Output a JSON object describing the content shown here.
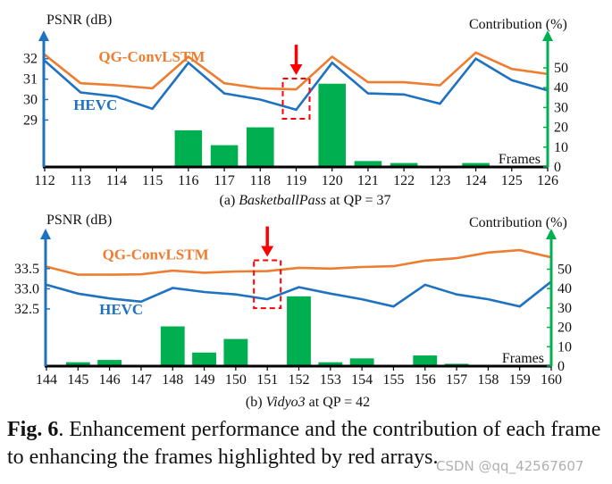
{
  "colors": {
    "qg": "#ed7d31",
    "hevc": "#1f72c0",
    "bars": "#00b050",
    "highlight": "#ff0000",
    "axis_left": "#1f72c0",
    "axis_right": "#00b050"
  },
  "chart_data": [
    {
      "type": "line+bar",
      "id": "a",
      "subtitle_prefix": "(a) ",
      "subtitle_italic": "BasketballPass",
      "subtitle_suffix": " at QP = 37",
      "ylabel_left": "PSNR (dB)",
      "ylabel_right": "Contribution (%)",
      "xlabel": "Frames",
      "x": [
        112,
        113,
        114,
        115,
        116,
        117,
        118,
        119,
        120,
        121,
        122,
        123,
        124,
        125,
        126
      ],
      "x_tick_labels": [
        "112",
        "113",
        "114",
        "115",
        "116",
        "117",
        "118",
        "119",
        "120",
        "121",
        "122",
        "123",
        "124",
        "125",
        "126"
      ],
      "y_left_ticks": [
        29,
        30,
        31,
        32
      ],
      "y_left_tick_labels": [
        "29",
        "30",
        "31",
        "32"
      ],
      "y_left_range": [
        26.7,
        33.3
      ],
      "y_right_ticks": [
        0,
        10,
        20,
        30,
        40,
        50
      ],
      "y_right_tick_labels": [
        "0",
        "10",
        "20",
        "30",
        "40",
        "50"
      ],
      "y_right_range": [
        0,
        68
      ],
      "series": [
        {
          "name": "QG-ConvLSTM",
          "type": "line",
          "color_key": "qg",
          "values": [
            32.2,
            30.8,
            30.7,
            30.55,
            32.1,
            30.8,
            30.55,
            30.5,
            32.1,
            30.85,
            30.85,
            30.7,
            32.3,
            31.5,
            31.25
          ]
        },
        {
          "name": "HEVC",
          "type": "line",
          "color_key": "hevc",
          "values": [
            31.9,
            30.35,
            30.15,
            29.55,
            31.8,
            30.3,
            30.0,
            29.5,
            31.8,
            30.3,
            30.25,
            29.8,
            32.0,
            30.95,
            30.45
          ]
        }
      ],
      "bars": {
        "name": "Contribution",
        "x": [
          113,
          114,
          115,
          116,
          117,
          118,
          120,
          121,
          122,
          123,
          124,
          125
        ],
        "values": [
          0.6,
          0.6,
          0.3,
          18.5,
          11,
          20,
          42,
          3,
          2,
          0.3,
          2,
          0.3
        ]
      },
      "highlight_frame": 119,
      "legend": [
        {
          "text": "QG-ConvLSTM",
          "color_key": "qg",
          "near_frame": 113.7,
          "near_value": 31.85
        },
        {
          "text": "HEVC",
          "color_key": "hevc",
          "near_frame": 113.0,
          "near_value": 29.5
        }
      ]
    },
    {
      "type": "line+bar",
      "id": "b",
      "subtitle_prefix": "(b) ",
      "subtitle_italic": "Vidyo3",
      "subtitle_suffix": " at QP = 42",
      "ylabel_left": "PSNR (dB)",
      "ylabel_right": "Contribution (%)",
      "xlabel": "Frames",
      "x": [
        144,
        145,
        146,
        147,
        148,
        149,
        150,
        151,
        152,
        153,
        154,
        155,
        156,
        157,
        158,
        159,
        160
      ],
      "x_tick_labels": [
        "144",
        "145",
        "146",
        "147",
        "148",
        "149",
        "150",
        "151",
        "152",
        "153",
        "154",
        "155",
        "156",
        "157",
        "158",
        "159",
        "160"
      ],
      "y_left_ticks": [
        32.5,
        33.0,
        33.5
      ],
      "y_left_tick_labels": [
        "32.5",
        "33.0",
        "33.5"
      ],
      "y_left_range": [
        31.08,
        34.45
      ],
      "y_right_ticks": [
        0,
        10,
        20,
        30,
        40,
        50
      ],
      "y_right_tick_labels": [
        "0",
        "10",
        "20",
        "30",
        "40",
        "50"
      ],
      "y_right_range": [
        0,
        70
      ],
      "series": [
        {
          "name": "QG-ConvLSTM",
          "type": "line",
          "color_key": "qg",
          "values": [
            33.55,
            33.35,
            33.35,
            33.36,
            33.45,
            33.4,
            33.43,
            33.44,
            33.52,
            33.5,
            33.54,
            33.56,
            33.7,
            33.76,
            33.9,
            33.96,
            33.78
          ]
        },
        {
          "name": "HEVC",
          "type": "line",
          "color_key": "hevc",
          "values": [
            33.1,
            32.88,
            32.76,
            32.68,
            33.02,
            32.92,
            32.86,
            32.74,
            33.04,
            32.88,
            32.74,
            32.56,
            33.1,
            32.86,
            32.74,
            32.56,
            33.18
          ]
        }
      ],
      "bars": {
        "name": "Contribution",
        "x": [
          145,
          146,
          148,
          149,
          150,
          152,
          153,
          154,
          156,
          157,
          158,
          159
        ],
        "values": [
          2,
          3.2,
          20.5,
          7,
          14,
          36,
          2,
          4,
          5.5,
          1.2,
          0.7,
          0.3
        ]
      },
      "highlight_frame": 151,
      "legend": [
        {
          "text": "QG-ConvLSTM",
          "color_key": "qg",
          "near_frame": 146.0,
          "near_value": 33.73
        },
        {
          "text": "HEVC",
          "color_key": "hevc",
          "near_frame": 145.9,
          "near_value": 32.37
        }
      ]
    }
  ],
  "caption": {
    "label": "Fig. 6",
    "text": ". Enhancement performance and the contribution of each frame to enhancing the frames highlighted by red arrays."
  },
  "watermark": "CSDN @qq_42567607"
}
